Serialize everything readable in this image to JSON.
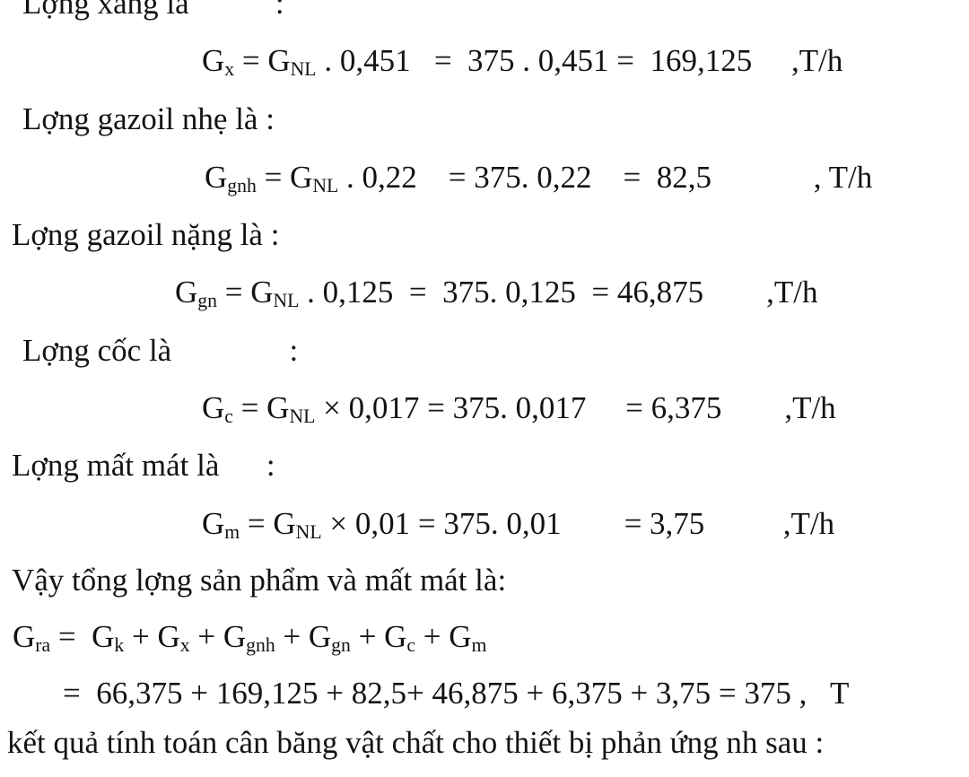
{
  "document": {
    "description": "Material balance calculation page (Vietnamese)",
    "feed_rate": "375",
    "unit": "T/h",
    "lines": [
      {
        "parts": [
          {
            "t": "Lợng xăng là           :"
          }
        ]
      },
      {
        "parts": [
          {
            "t": "G"
          },
          {
            "t": "x",
            "sub": true
          },
          {
            "t": " = G"
          },
          {
            "t": "NL",
            "sub": true
          },
          {
            "t": " . 0,451   =  375 . 0,451 =  169,125     ,T/h"
          }
        ]
      },
      {
        "parts": [
          {
            "t": "Lợng gazoil nhẹ là :"
          }
        ]
      },
      {
        "parts": [
          {
            "t": "G"
          },
          {
            "t": "gnh",
            "sub": true
          },
          {
            "t": " = G"
          },
          {
            "t": "NL",
            "sub": true
          },
          {
            "t": " . 0,22    = 375. 0,22    =  82,5             , T/h"
          }
        ]
      },
      {
        "parts": [
          {
            "t": "Lợng gazoil nặng là :"
          }
        ]
      },
      {
        "parts": [
          {
            "t": "G"
          },
          {
            "t": "gn",
            "sub": true
          },
          {
            "t": " = G"
          },
          {
            "t": "NL",
            "sub": true
          },
          {
            "t": " . 0,125  =  375. 0,125  = 46,875        ,T/h"
          }
        ]
      },
      {
        "parts": [
          {
            "t": "Lợng cốc là               :"
          }
        ]
      },
      {
        "parts": [
          {
            "t": "G"
          },
          {
            "t": "c",
            "sub": true
          },
          {
            "t": " = G"
          },
          {
            "t": "NL",
            "sub": true
          },
          {
            "t": " × 0,017 = 375. 0,017     = 6,375        ,T/h"
          }
        ]
      },
      {
        "parts": [
          {
            "t": "Lợng mất mát là      :"
          }
        ]
      },
      {
        "parts": [
          {
            "t": "G"
          },
          {
            "t": "m",
            "sub": true
          },
          {
            "t": " = G"
          },
          {
            "t": "NL",
            "sub": true
          },
          {
            "t": " × 0,01 = 375. 0,01        = 3,75          ,T/h"
          }
        ]
      },
      {
        "parts": [
          {
            "t": "Vậy tổng lợng sản phẩm và mất mát là:"
          }
        ]
      },
      {
        "parts": [
          {
            "t": "G"
          },
          {
            "t": "ra",
            "sub": true
          },
          {
            "t": " =  G"
          },
          {
            "t": "k",
            "sub": true
          },
          {
            "t": " + G"
          },
          {
            "t": "x",
            "sub": true
          },
          {
            "t": " + G"
          },
          {
            "t": "gnh",
            "sub": true
          },
          {
            "t": " + G"
          },
          {
            "t": "gn",
            "sub": true
          },
          {
            "t": " + G"
          },
          {
            "t": "c",
            "sub": true
          },
          {
            "t": " + G"
          },
          {
            "t": "m",
            "sub": true
          }
        ]
      },
      {
        "parts": [
          {
            "t": "=  66,375 + 169,125 + 82,5+ 46,875 + 6,375 + 3,75 = 375 ,   T"
          }
        ]
      },
      {
        "parts": [
          {
            "t": "kết quả tính toán cân băng vật chất cho thiết bị phản ứng nh sau :"
          }
        ]
      }
    ]
  }
}
